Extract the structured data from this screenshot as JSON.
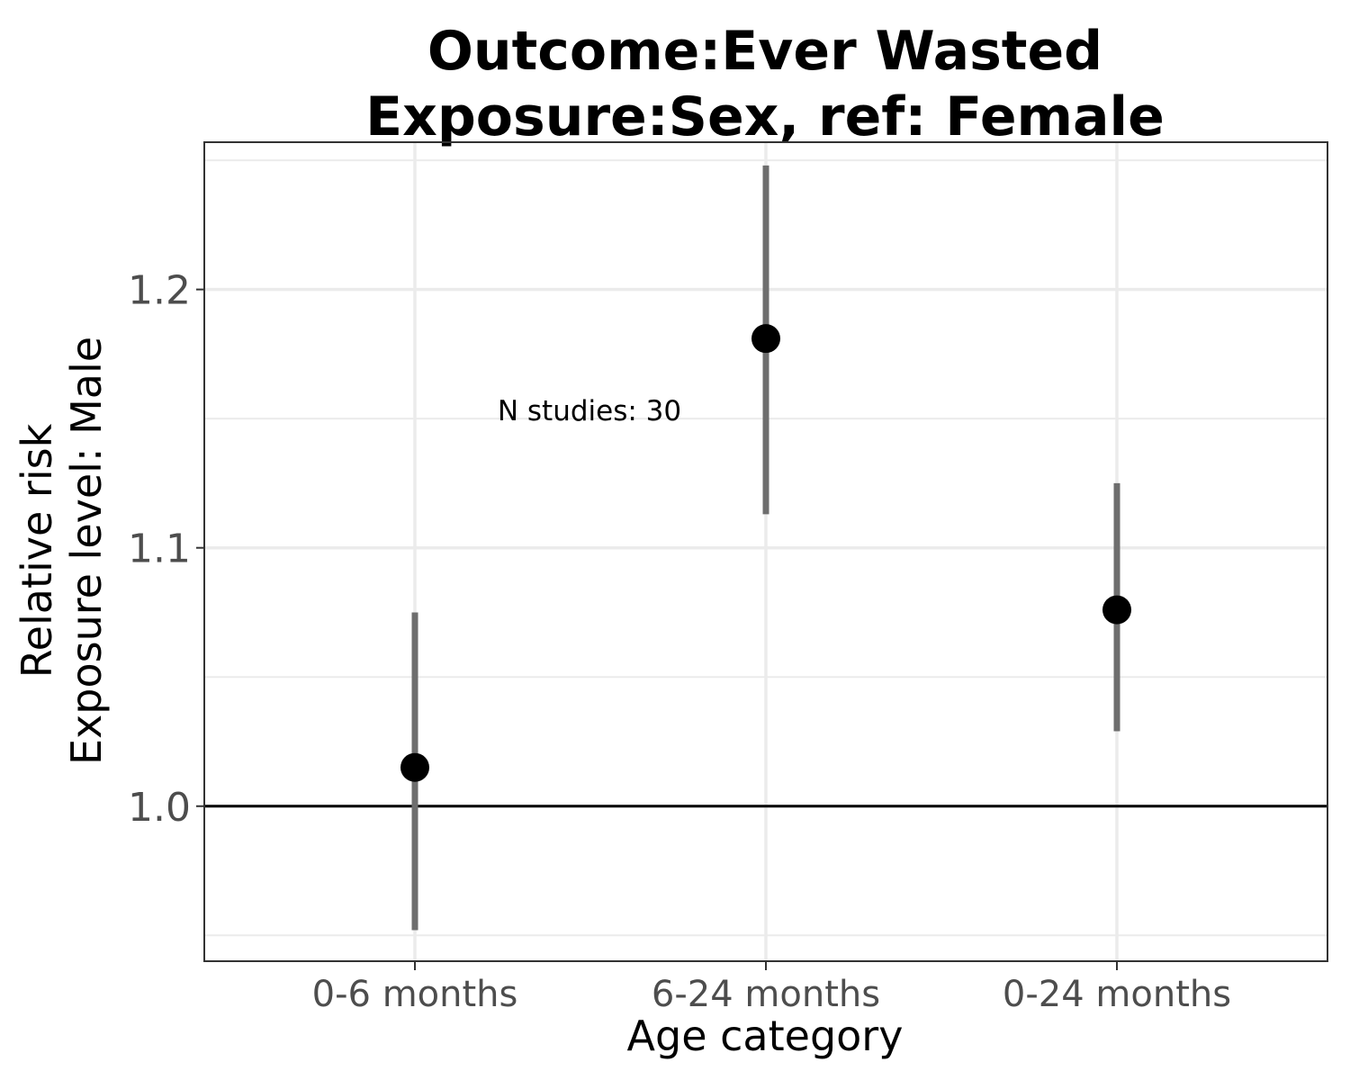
{
  "chart_data": {
    "type": "scatter",
    "title_lines": [
      "Outcome:Ever Wasted",
      "Exposure:Sex, ref: Female"
    ],
    "xlabel": "Age category",
    "ylabel_lines": [
      "Relative risk",
      "Exposure level: Male"
    ],
    "categories": [
      "0-6 months",
      "6-24 months",
      "0-24 months"
    ],
    "series": [
      {
        "estimate": [
          1.015,
          1.181,
          1.076
        ],
        "ci_lower": [
          0.952,
          1.113,
          1.029
        ],
        "ci_upper": [
          1.075,
          1.248,
          1.125
        ]
      }
    ],
    "yticks": [
      1.0,
      1.1,
      1.2
    ],
    "ytick_labels": [
      "1.0",
      "1.1",
      "1.2"
    ],
    "ylim": [
      0.94,
      1.257
    ],
    "reference_line": 1.0,
    "annotation": "N studies: 30",
    "grid": true,
    "colors": {
      "point": "#000000",
      "errorbar": "#6e6e6e",
      "grid": "#ebebeb",
      "panel_border": "#333333",
      "reference_line": "#000000"
    }
  }
}
